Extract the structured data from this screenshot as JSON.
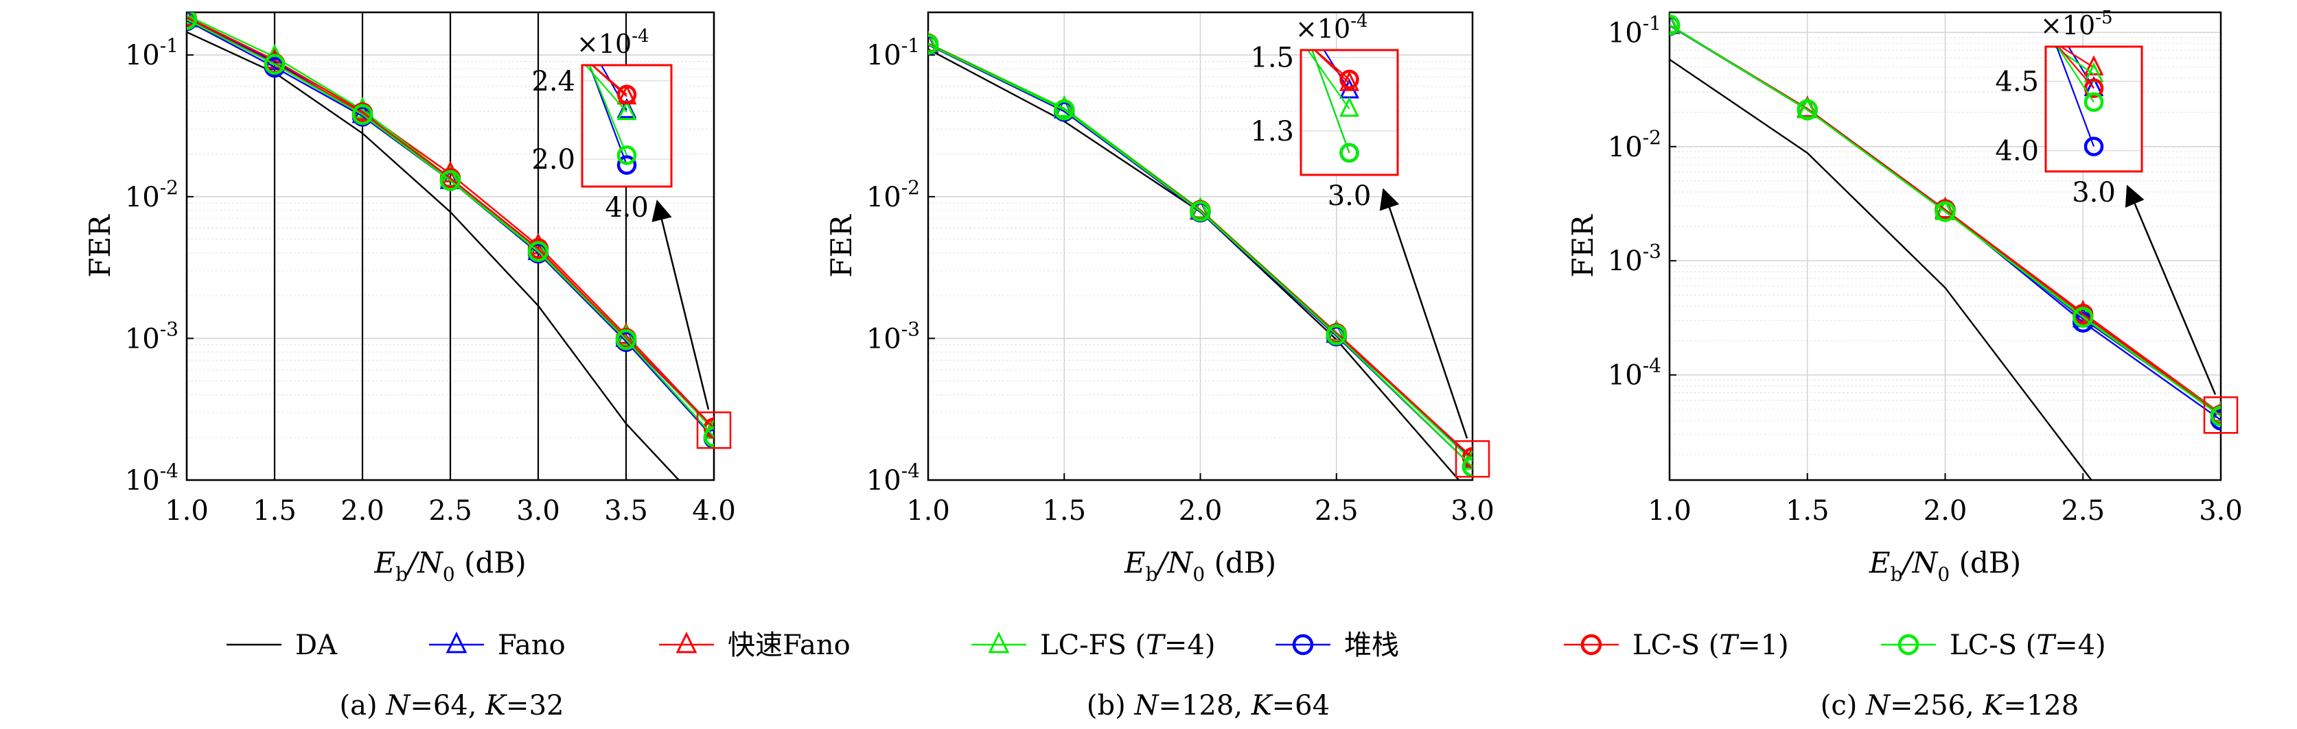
{
  "legend": {
    "placement": "bottom",
    "entries": [
      {
        "label": "DA",
        "color": "#000000",
        "marker": "none"
      },
      {
        "label": "Fano",
        "color": "#0000ff",
        "marker": "triangle"
      },
      {
        "label": "快速Fano",
        "color": "#ff0000",
        "marker": "triangle"
      },
      {
        "label": "LC-FS (T=4)",
        "color": "#00ee00",
        "marker": "triangle"
      },
      {
        "label": "堆栈",
        "color": "#0000ff",
        "marker": "circle"
      },
      {
        "label": "LC-S (T=1)",
        "color": "#ff0000",
        "marker": "circle"
      },
      {
        "label": "LC-S (T=4)",
        "color": "#00ee00",
        "marker": "circle"
      }
    ]
  },
  "chart_data": [
    {
      "type": "line",
      "caption": "(a) N=64, K=32",
      "xlabel": "Eb/N0 (dB)",
      "ylabel": "FER",
      "yscale": "log",
      "grid": true,
      "xlim": [
        1.0,
        4.0
      ],
      "ylim": [
        0.0001,
        0.2
      ],
      "xticks": [
        "1.0",
        "1.5",
        "2.0",
        "2.5",
        "3.0",
        "3.5",
        "4.0"
      ],
      "yticks": [
        {
          "mant": "10",
          "exp": "-1",
          "value": 0.1
        },
        {
          "mant": "10",
          "exp": "-2",
          "value": 0.01
        },
        {
          "mant": "10",
          "exp": "-3",
          "value": 0.001
        },
        {
          "mant": "10",
          "exp": "-4",
          "value": 0.0001
        }
      ],
      "series": [
        {
          "name": "DA",
          "x": [
            1.0,
            1.5,
            2.0,
            2.5,
            3.0,
            3.5,
            3.8
          ],
          "values": [
            0.145,
            0.075,
            0.028,
            0.0078,
            0.0017,
            0.00025,
            0.0001
          ]
        },
        {
          "name": "Fano",
          "x": [
            1.0,
            1.5,
            2.0,
            2.5,
            3.0,
            3.5,
            4.0
          ],
          "values": [
            0.18,
            0.09,
            0.038,
            0.013,
            0.0041,
            0.001,
            0.000225
          ]
        },
        {
          "name": "快速Fano",
          "x": [
            1.0,
            1.5,
            2.0,
            2.5,
            3.0,
            3.5,
            4.0
          ],
          "values": [
            0.185,
            0.092,
            0.04,
            0.0145,
            0.0045,
            0.00105,
            0.000232
          ]
        },
        {
          "name": "LC-FS (T=4)",
          "x": [
            1.0,
            1.5,
            2.0,
            2.5,
            3.0,
            3.5,
            4.0
          ],
          "values": [
            0.19,
            0.097,
            0.041,
            0.0135,
            0.0042,
            0.00102,
            0.000224
          ]
        },
        {
          "name": "堆栈",
          "x": [
            1.0,
            1.5,
            2.0,
            2.5,
            3.0,
            3.5,
            4.0
          ],
          "values": [
            0.175,
            0.082,
            0.037,
            0.013,
            0.004,
            0.00095,
            0.000197
          ]
        },
        {
          "name": "LC-S (T=1)",
          "x": [
            1.0,
            1.5,
            2.0,
            2.5,
            3.0,
            3.5,
            4.0
          ],
          "values": [
            0.18,
            0.087,
            0.039,
            0.0135,
            0.0043,
            0.001,
            0.000233
          ]
        },
        {
          "name": "LC-S (T=4)",
          "x": [
            1.0,
            1.5,
            2.0,
            2.5,
            3.0,
            3.5,
            4.0
          ],
          "values": [
            0.178,
            0.086,
            0.038,
            0.013,
            0.0041,
            0.00098,
            0.000202
          ]
        }
      ],
      "inset": {
        "exponent_label": "×10",
        "exponent": "-4",
        "xticks": [
          "4.0"
        ],
        "yticks": [
          {
            "label": "2.4",
            "value": 0.00024
          },
          {
            "label": "2.0",
            "value": 0.0002
          }
        ],
        "x_center": 4.0,
        "x_halfwidth": 0.04,
        "ylim": [
          0.000186,
          0.000248
        ]
      }
    },
    {
      "type": "line",
      "caption": "(b) N=128, K=64",
      "xlabel": "Eb/N0 (dB)",
      "ylabel": "FER",
      "yscale": "log",
      "grid": true,
      "xlim": [
        1.0,
        3.0
      ],
      "ylim": [
        0.0001,
        0.2
      ],
      "xticks": [
        "1.0",
        "1.5",
        "2.0",
        "2.5",
        "3.0"
      ],
      "yticks": [
        {
          "mant": "10",
          "exp": "-1",
          "value": 0.1
        },
        {
          "mant": "10",
          "exp": "-2",
          "value": 0.01
        },
        {
          "mant": "10",
          "exp": "-3",
          "value": 0.001
        },
        {
          "mant": "10",
          "exp": "-4",
          "value": 0.0001
        }
      ],
      "series": [
        {
          "name": "DA",
          "x": [
            1.0,
            1.5,
            2.0,
            2.5,
            2.95
          ],
          "values": [
            0.11,
            0.034,
            0.0078,
            0.00098,
            0.0001
          ]
        },
        {
          "name": "Fano",
          "x": [
            1.0,
            1.5,
            2.0,
            2.5,
            3.0
          ],
          "values": [
            0.118,
            0.041,
            0.0079,
            0.00107,
            0.000141
          ]
        },
        {
          "name": "快速Fano",
          "x": [
            1.0,
            1.5,
            2.0,
            2.5,
            3.0
          ],
          "values": [
            0.12,
            0.042,
            0.008,
            0.0011,
            0.000143
          ]
        },
        {
          "name": "LC-FS (T=4)",
          "x": [
            1.0,
            1.5,
            2.0,
            2.5,
            3.0
          ],
          "values": [
            0.121,
            0.042,
            0.0081,
            0.00109,
            0.000136
          ]
        },
        {
          "name": "堆栈",
          "x": [
            1.0,
            1.5,
            2.0,
            2.5,
            3.0
          ],
          "values": [
            0.118,
            0.04,
            0.0078,
            0.00104,
            0.000124
          ]
        },
        {
          "name": "LC-S (T=1)",
          "x": [
            1.0,
            1.5,
            2.0,
            2.5,
            3.0
          ],
          "values": [
            0.12,
            0.041,
            0.008,
            0.00108,
            0.000144
          ]
        },
        {
          "name": "LC-S (T=4)",
          "x": [
            1.0,
            1.5,
            2.0,
            2.5,
            3.0
          ],
          "values": [
            0.119,
            0.041,
            0.0079,
            0.00106,
            0.000124
          ]
        }
      ],
      "inset": {
        "exponent_label": "×10",
        "exponent": "-4",
        "xticks": [
          "3.0"
        ],
        "yticks": [
          {
            "label": "1.5",
            "value": 0.00015
          },
          {
            "label": "1.3",
            "value": 0.00013
          }
        ],
        "x_center": 3.0,
        "x_halfwidth": 0.04,
        "ylim": [
          0.000118,
          0.000152
        ]
      }
    },
    {
      "type": "line",
      "caption": "(c) N=256, K=128",
      "xlabel": "Eb/N0 (dB)",
      "ylabel": "FER",
      "yscale": "log",
      "grid": true,
      "xlim": [
        1.0,
        3.0
      ],
      "ylim": [
        1.2e-05,
        0.15
      ],
      "xticks": [
        "1.0",
        "1.5",
        "2.0",
        "2.5",
        "3.0"
      ],
      "yticks": [
        {
          "mant": "10",
          "exp": "-1",
          "value": 0.1
        },
        {
          "mant": "10",
          "exp": "-2",
          "value": 0.01
        },
        {
          "mant": "10",
          "exp": "-3",
          "value": 0.001
        },
        {
          "mant": "10",
          "exp": "-4",
          "value": 0.0001
        }
      ],
      "series": [
        {
          "name": "DA",
          "x": [
            1.0,
            1.5,
            2.0,
            2.5,
            2.7
          ],
          "values": [
            0.058,
            0.0088,
            0.00058,
            1.5e-05,
            3.5e-06
          ]
        },
        {
          "name": "Fano",
          "x": [
            1.0,
            1.5,
            2.0,
            2.5,
            3.0
          ],
          "values": [
            0.115,
            0.0215,
            0.0028,
            0.00031,
            4.45e-05
          ]
        },
        {
          "name": "快速Fano",
          "x": [
            1.0,
            1.5,
            2.0,
            2.5,
            3.0
          ],
          "values": [
            0.116,
            0.0215,
            0.0028,
            0.00035,
            4.6e-05
          ]
        },
        {
          "name": "LC-FS (T=4)",
          "x": [
            1.0,
            1.5,
            2.0,
            2.5,
            3.0
          ],
          "values": [
            0.117,
            0.021,
            0.0027,
            0.00033,
            4.55e-05
          ]
        },
        {
          "name": "堆栈",
          "x": [
            1.0,
            1.5,
            2.0,
            2.5,
            3.0
          ],
          "values": [
            0.115,
            0.021,
            0.0028,
            0.00029,
            4.03e-05
          ]
        },
        {
          "name": "LC-S (T=1)",
          "x": [
            1.0,
            1.5,
            2.0,
            2.5,
            3.0
          ],
          "values": [
            0.116,
            0.021,
            0.0028,
            0.00034,
            4.45e-05
          ]
        },
        {
          "name": "LC-S (T=4)",
          "x": [
            1.0,
            1.5,
            2.0,
            2.5,
            3.0
          ],
          "values": [
            0.116,
            0.021,
            0.0027,
            0.00032,
            4.35e-05
          ]
        }
      ],
      "inset": {
        "exponent_label": "×10",
        "exponent": "-5",
        "xticks": [
          "3.0"
        ],
        "yticks": [
          {
            "label": "4.5",
            "value": 4.5e-05
          },
          {
            "label": "4.0",
            "value": 4e-05
          }
        ],
        "x_center": 3.0,
        "x_halfwidth": 0.04,
        "ylim": [
          3.85e-05,
          4.75e-05
        ]
      }
    }
  ]
}
